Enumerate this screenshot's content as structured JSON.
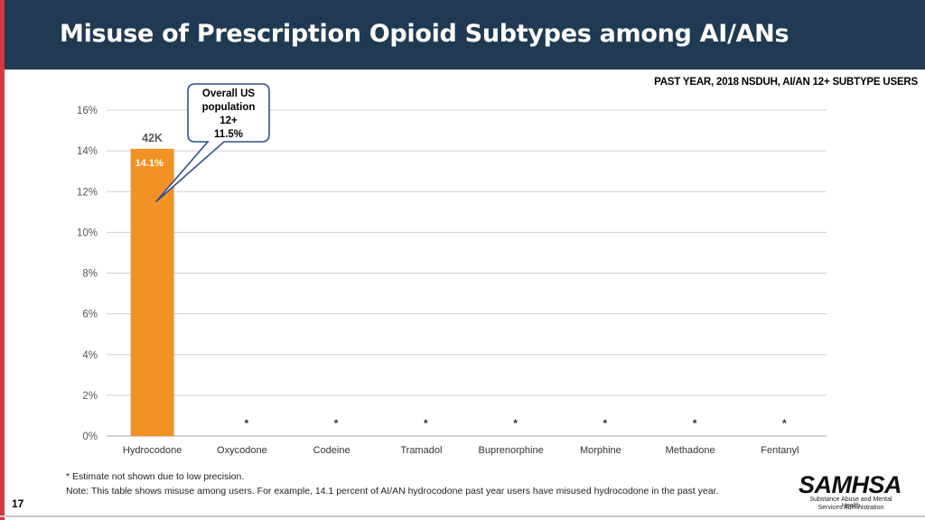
{
  "header": {
    "title": "Misuse of Prescription Opioid Subtypes among AI/ANs",
    "tag": "PAST YEAR, 2018 NSDUH, AI/AN 12+ SUBTYPE USERS"
  },
  "chart_data": {
    "type": "bar",
    "categories": [
      "Hydrocodone",
      "Oxycodone",
      "Codeine",
      "Tramadol",
      "Buprenorphine",
      "Morphine",
      "Methadone",
      "Fentanyl"
    ],
    "values": [
      14.1,
      null,
      null,
      null,
      null,
      null,
      null,
      null
    ],
    "value_labels": [
      "14.1%",
      "*",
      "*",
      "*",
      "*",
      "*",
      "*",
      "*"
    ],
    "count_labels": [
      "42K",
      "",
      "",
      "",
      "",
      "",
      "",
      ""
    ],
    "yticks": [
      "0%",
      "2%",
      "4%",
      "6%",
      "8%",
      "10%",
      "12%",
      "14%",
      "16%"
    ],
    "ylim": [
      0,
      16
    ],
    "grid": true,
    "bar_color": "#f39224",
    "callout": {
      "lines": [
        "Overall US",
        "population",
        "12+",
        "11.5%"
      ],
      "value": 11.5
    }
  },
  "footer": {
    "note1": "* Estimate not shown due to low precision.",
    "note2": "Note:  This table shows misuse among users.  For example, 14.1 percent of AI/AN hydrocodone past year users have misused hydrocodone in the past year.",
    "page": "17",
    "logo_word": "SAMHSA",
    "logo_line1": "Substance Abuse and Mental Health",
    "logo_line2": "Services Administration"
  }
}
